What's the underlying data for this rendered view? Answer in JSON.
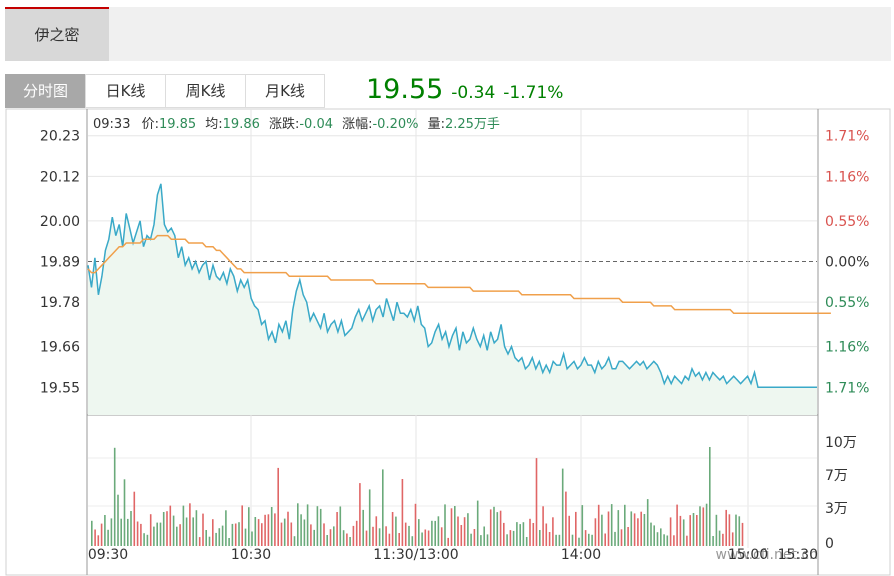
{
  "header": {
    "stock_name": "伊之密"
  },
  "tabs": [
    {
      "label": "分时图",
      "active": true
    },
    {
      "label": "日K线",
      "active": false
    },
    {
      "label": "周K线",
      "active": false
    },
    {
      "label": "月K线",
      "active": false
    }
  ],
  "quote": {
    "price": "19.55",
    "change": "-0.34",
    "change_pct": "-1.71%",
    "color": "#008000"
  },
  "info_line": {
    "time": "09:33",
    "price_label": "价:",
    "price": "19.85",
    "avg_label": "均:",
    "avg": "19.86",
    "chg_label": "涨跌:",
    "chg": "-0.04",
    "pct_label": "涨幅:",
    "pct": "-0.20%",
    "vol_label": "量:",
    "vol": "2.25万手"
  },
  "chart_data": {
    "type": "line",
    "prev_close": 19.89,
    "ylim": [
      19.548,
      20.232
    ],
    "y_ticks_left": [
      "20.23",
      "20.12",
      "20.00",
      "19.89",
      "19.78",
      "19.66",
      "19.55"
    ],
    "y_ticks_right": [
      "1.71%",
      "1.16%",
      "0.55%",
      "0.00%",
      "0.55%",
      "1.16%",
      "1.71%"
    ],
    "x_ticks": [
      "09:30",
      "10:30",
      "11:30/13:00",
      "14:00",
      "15:00"
    ],
    "x_end_label": "15:30",
    "watermark": "www.cfi.net.cn",
    "series": [
      {
        "values": [
          19.88,
          19.82,
          19.9,
          19.8,
          19.85,
          19.92,
          19.95,
          20.01,
          19.96,
          19.99,
          19.93,
          20.02,
          19.98,
          19.94,
          19.97,
          20.0,
          19.93,
          19.96,
          19.95,
          19.99,
          20.07,
          20.1,
          19.99,
          19.97,
          19.98,
          19.96,
          19.9,
          19.93,
          19.88,
          19.9,
          19.87,
          19.89,
          19.86,
          19.88,
          19.89,
          19.84,
          19.88,
          19.85,
          19.84,
          19.86,
          19.83,
          19.87,
          19.85,
          19.81,
          19.84,
          19.82,
          19.84,
          19.79,
          19.77,
          19.76,
          19.72,
          19.73,
          19.68,
          19.7,
          19.67,
          19.72,
          19.7,
          19.73,
          19.68,
          19.76,
          19.81,
          19.84,
          19.8,
          19.78,
          19.73,
          19.75,
          19.73,
          19.71,
          19.75,
          19.7,
          19.72,
          19.73,
          19.7,
          19.73,
          19.69,
          19.7,
          19.71,
          19.74,
          19.76,
          19.73,
          19.75,
          19.77,
          19.73,
          19.76,
          19.77,
          19.74,
          19.79,
          19.76,
          19.73,
          19.78,
          19.75,
          19.75,
          19.74,
          19.76,
          19.73,
          19.77,
          19.72,
          19.71,
          19.66,
          19.67,
          19.7,
          19.72,
          19.68,
          19.7,
          19.66,
          19.69,
          19.71,
          19.65,
          19.7,
          19.67,
          19.68,
          19.71,
          19.68,
          19.66,
          19.69,
          19.65,
          19.7,
          19.67,
          19.68,
          19.72,
          19.66,
          19.64,
          19.66,
          19.63,
          19.62,
          19.63,
          19.6,
          19.61,
          19.63,
          19.6,
          19.62,
          19.59,
          19.61,
          19.59,
          19.62,
          19.61,
          19.61,
          19.64,
          19.6,
          19.61,
          19.62,
          19.6,
          19.61,
          19.63,
          19.61,
          19.61,
          19.59,
          19.62,
          19.6,
          19.61,
          19.63,
          19.6,
          19.6,
          19.62,
          19.62,
          19.61,
          19.6,
          19.61,
          19.62,
          19.61,
          19.62,
          19.6,
          19.61,
          19.62,
          19.61,
          19.59,
          19.56,
          19.58,
          19.56,
          19.58,
          19.57,
          19.56,
          19.58,
          19.57,
          19.6,
          19.58,
          19.59,
          19.57,
          19.59,
          19.57,
          19.59,
          19.58,
          19.57,
          19.58,
          19.56,
          19.57,
          19.58,
          19.57,
          19.56,
          19.57,
          19.58,
          19.56,
          19.59,
          19.55,
          19.55,
          19.55,
          19.55,
          19.55,
          19.55,
          19.55,
          19.55,
          19.55,
          19.55,
          19.55,
          19.55,
          19.55,
          19.55,
          19.55,
          19.55,
          19.55,
          19.55
        ],
        "color": "#3aa9c8"
      },
      {
        "values": [
          19.87,
          19.86,
          19.86,
          19.87,
          19.88,
          19.89,
          19.9,
          19.91,
          19.92,
          19.93,
          19.93,
          19.94,
          19.94,
          19.94,
          19.94,
          19.94,
          19.95,
          19.95,
          19.95,
          19.95,
          19.96,
          19.96,
          19.96,
          19.96,
          19.95,
          19.95,
          19.95,
          19.95,
          19.95,
          19.94,
          19.94,
          19.94,
          19.94,
          19.94,
          19.93,
          19.93,
          19.93,
          19.92,
          19.92,
          19.91,
          19.9,
          19.89,
          19.88,
          19.87,
          19.87,
          19.86,
          19.86,
          19.86,
          19.86,
          19.86,
          19.86,
          19.86,
          19.86,
          19.86,
          19.86,
          19.86,
          19.86,
          19.86,
          19.85,
          19.85,
          19.85,
          19.85,
          19.85,
          19.85,
          19.85,
          19.85,
          19.85,
          19.85,
          19.85,
          19.85,
          19.84,
          19.84,
          19.84,
          19.84,
          19.84,
          19.84,
          19.84,
          19.84,
          19.84,
          19.84,
          19.84,
          19.84,
          19.84,
          19.83,
          19.83,
          19.83,
          19.83,
          19.83,
          19.83,
          19.83,
          19.83,
          19.83,
          19.83,
          19.83,
          19.83,
          19.83,
          19.83,
          19.83,
          19.82,
          19.82,
          19.82,
          19.82,
          19.82,
          19.82,
          19.82,
          19.82,
          19.82,
          19.82,
          19.82,
          19.82,
          19.82,
          19.81,
          19.81,
          19.81,
          19.81,
          19.81,
          19.81,
          19.81,
          19.81,
          19.81,
          19.81,
          19.81,
          19.81,
          19.81,
          19.81,
          19.8,
          19.8,
          19.8,
          19.8,
          19.8,
          19.8,
          19.8,
          19.8,
          19.8,
          19.8,
          19.8,
          19.8,
          19.8,
          19.8,
          19.8,
          19.79,
          19.79,
          19.79,
          19.79,
          19.79,
          19.79,
          19.79,
          19.79,
          19.79,
          19.79,
          19.79,
          19.79,
          19.79,
          19.79,
          19.78,
          19.78,
          19.78,
          19.78,
          19.78,
          19.78,
          19.78,
          19.78,
          19.78,
          19.77,
          19.77,
          19.77,
          19.77,
          19.77,
          19.77,
          19.76,
          19.76,
          19.76,
          19.76,
          19.76,
          19.76,
          19.76,
          19.76,
          19.76,
          19.76,
          19.76,
          19.76,
          19.76,
          19.76,
          19.76,
          19.76,
          19.76,
          19.75,
          19.75,
          19.75,
          19.75,
          19.75,
          19.75,
          19.75,
          19.75,
          19.75,
          19.75,
          19.75,
          19.75,
          19.75,
          19.75,
          19.75,
          19.75,
          19.75,
          19.75,
          19.75,
          19.75,
          19.75,
          19.75,
          19.75,
          19.75,
          19.75,
          19.75,
          19.75,
          19.75,
          19.75
        ],
        "color": "#f0a04b"
      }
    ],
    "volume": {
      "ylim": [
        0,
        110000
      ],
      "y_ticks": [
        "10万",
        "7万",
        "3万",
        "0"
      ],
      "up_color": "#e06666",
      "down_color": "#6aaa7a"
    }
  }
}
